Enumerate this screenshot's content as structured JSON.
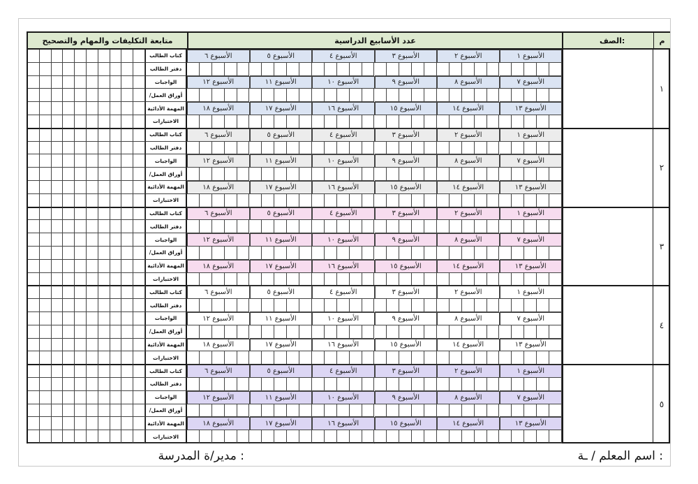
{
  "header": {
    "col_m": "م",
    "class_label": "الصف:",
    "weeks_title": "عدد الأسابيع الدراسية",
    "tracking_title": "متابعة التكليفات والمهام والتصحيح"
  },
  "blocks": [
    {
      "number": "١",
      "bg": "#dbe4f3"
    },
    {
      "number": "٢",
      "bg": "#ececec"
    },
    {
      "number": "٣",
      "bg": "#f7dcef"
    },
    {
      "number": "٤",
      "bg": "#ffffff"
    },
    {
      "number": "٥",
      "bg": "#dcd6f4"
    }
  ],
  "weeks": [
    [
      "الأسبوع ١",
      "الأسبوع ٢",
      "الأسبوع ٣",
      "الأسبوع ٤",
      "الأسبوع ٥",
      "الأسبوع ٦"
    ],
    [
      "الأسبوع ٧",
      "الأسبوع ٨",
      "الأسبوع ٩",
      "الأسبوع ١٠",
      "الأسبوع ١١",
      "الأسبوع ١٢"
    ],
    [
      "الأسبوع ١٣",
      "الأسبوع ١٤",
      "الأسبوع ١٥",
      "الأسبوع ١٦",
      "الأسبوع ١٧",
      "الأسبوع ١٨"
    ]
  ],
  "row_labels": [
    "كتاب الطالب",
    "دفتر الطالب",
    "الواجبات",
    "/أوراق العمل",
    "المهمة الأدائية",
    "الاختبارات"
  ],
  "footer": {
    "teacher": "اسم المعلم / ـة :",
    "principal": "مدير/ة المدرسة :"
  }
}
